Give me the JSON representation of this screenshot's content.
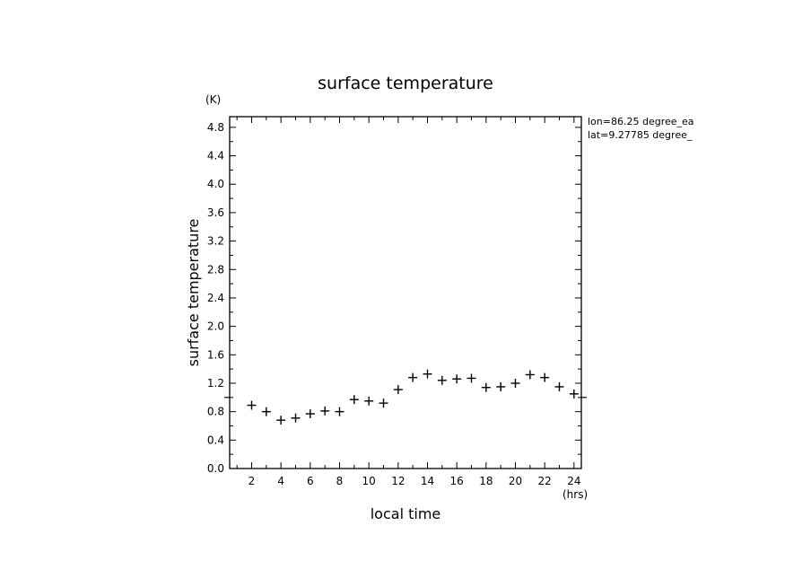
{
  "chart_data": {
    "type": "scatter",
    "title": "surface temperature",
    "xlabel": "local time",
    "ylabel": "surface temperature",
    "x_unit": "(hrs)",
    "y_unit": "(K)",
    "xlim": [
      0.5,
      24.5
    ],
    "ylim": [
      0.0,
      4.95
    ],
    "x_ticks": [
      2,
      4,
      6,
      8,
      10,
      12,
      14,
      16,
      18,
      20,
      22,
      24
    ],
    "y_ticks": [
      0.0,
      0.4,
      0.8,
      1.2,
      1.6,
      2.0,
      2.4,
      2.8,
      3.2,
      3.6,
      4.0,
      4.4,
      4.8
    ],
    "y_tick_labels": [
      "0.0",
      "0.4",
      "0.8",
      "1.2",
      "1.6",
      "2.0",
      "2.4",
      "2.8",
      "3.2",
      "3.6",
      "4.0",
      "4.4",
      "4.8"
    ],
    "reference_line_y": 1.0,
    "marker": "+",
    "x": [
      2,
      3,
      4,
      5,
      6,
      7,
      8,
      9,
      10,
      11,
      12,
      13,
      14,
      15,
      16,
      17,
      18,
      19,
      20,
      21,
      22,
      23,
      24
    ],
    "values": [
      0.89,
      0.8,
      0.68,
      0.71,
      0.77,
      0.81,
      0.8,
      0.97,
      0.95,
      0.92,
      1.11,
      1.28,
      1.33,
      1.24,
      1.26,
      1.27,
      1.14,
      1.15,
      1.2,
      1.32,
      1.28,
      1.15,
      1.05
    ],
    "annotations": [
      "lon=86.25 degree_ea",
      "lat=9.27785 degree_"
    ]
  }
}
